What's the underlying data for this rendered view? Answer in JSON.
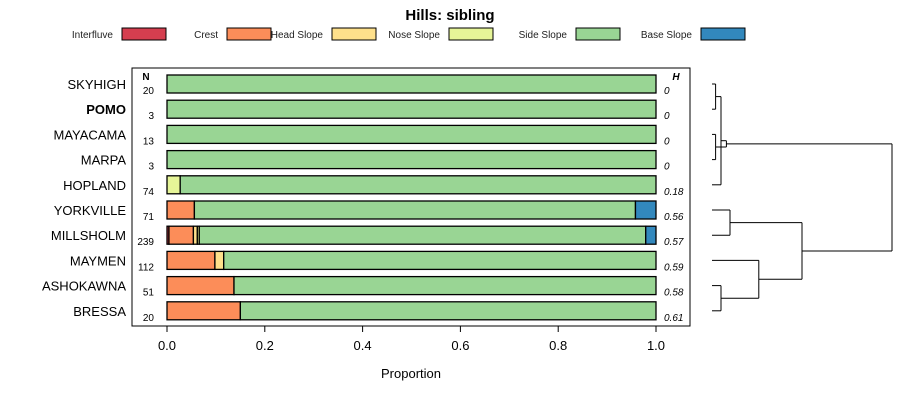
{
  "chart_data": {
    "type": "bar",
    "subtype": "stacked-horizontal-proportion",
    "title": "Hills: sibling",
    "xlabel": "Proportion",
    "xlim": [
      0,
      1
    ],
    "xticks": [
      "0.0",
      "0.2",
      "0.4",
      "0.6",
      "0.8",
      "1.0"
    ],
    "n_header": "N",
    "h_header": "H",
    "legend_placement": "top",
    "classes": [
      {
        "name": "Interfluve",
        "color": "#d53e4f"
      },
      {
        "name": "Crest",
        "color": "#fc8d59"
      },
      {
        "name": "Head Slope",
        "color": "#fee08b"
      },
      {
        "name": "Nose Slope",
        "color": "#e6f598"
      },
      {
        "name": "Side Slope",
        "color": "#99d594"
      },
      {
        "name": "Base Slope",
        "color": "#3288bd"
      }
    ],
    "rows": [
      {
        "label": "SKYHIGH",
        "n": "20",
        "h": "0",
        "bold": false,
        "values": [
          0,
          0,
          0,
          0,
          1.0,
          0
        ]
      },
      {
        "label": "POMO",
        "n": "3",
        "h": "0",
        "bold": true,
        "values": [
          0,
          0,
          0,
          0,
          1.0,
          0
        ]
      },
      {
        "label": "MAYACAMA",
        "n": "13",
        "h": "0",
        "bold": false,
        "values": [
          0,
          0,
          0,
          0,
          1.0,
          0
        ]
      },
      {
        "label": "MARPA",
        "n": "3",
        "h": "0",
        "bold": false,
        "values": [
          0,
          0,
          0,
          0,
          1.0,
          0
        ]
      },
      {
        "label": "HOPLAND",
        "n": "74",
        "h": "0.18",
        "bold": false,
        "values": [
          0,
          0,
          0,
          0.027,
          0.973,
          0
        ]
      },
      {
        "label": "YORKVILLE",
        "n": "71",
        "h": "0.56",
        "bold": false,
        "values": [
          0,
          0.056,
          0,
          0,
          0.902,
          0.042
        ]
      },
      {
        "label": "MILLSHOLM",
        "n": "239",
        "h": "0.57",
        "bold": false,
        "values": [
          0.004,
          0.05,
          0.008,
          0.004,
          0.913,
          0.021
        ]
      },
      {
        "label": "MAYMEN",
        "n": "112",
        "h": "0.59",
        "bold": false,
        "values": [
          0,
          0.098,
          0.018,
          0,
          0.884,
          0
        ]
      },
      {
        "label": "ASHOKAWNA",
        "n": "51",
        "h": "0.58",
        "bold": false,
        "values": [
          0,
          0.137,
          0,
          0,
          0.863,
          0
        ]
      },
      {
        "label": "BRESSA",
        "n": "20",
        "h": "0.61",
        "bold": false,
        "values": [
          0,
          0.15,
          0,
          0,
          0.85,
          0
        ]
      }
    ],
    "dendrogram": {
      "merges": [
        [
          0,
          1,
          0.02
        ],
        [
          2,
          3,
          0.02
        ],
        [
          "c0",
          4,
          0.05
        ],
        [
          "c1",
          "c2",
          0.08
        ],
        [
          5,
          6,
          0.1
        ],
        [
          8,
          9,
          0.05
        ],
        [
          7,
          "c5",
          0.26
        ],
        [
          "c4",
          "c6",
          0.5
        ],
        [
          "c3",
          "c7",
          1.0
        ]
      ]
    }
  }
}
